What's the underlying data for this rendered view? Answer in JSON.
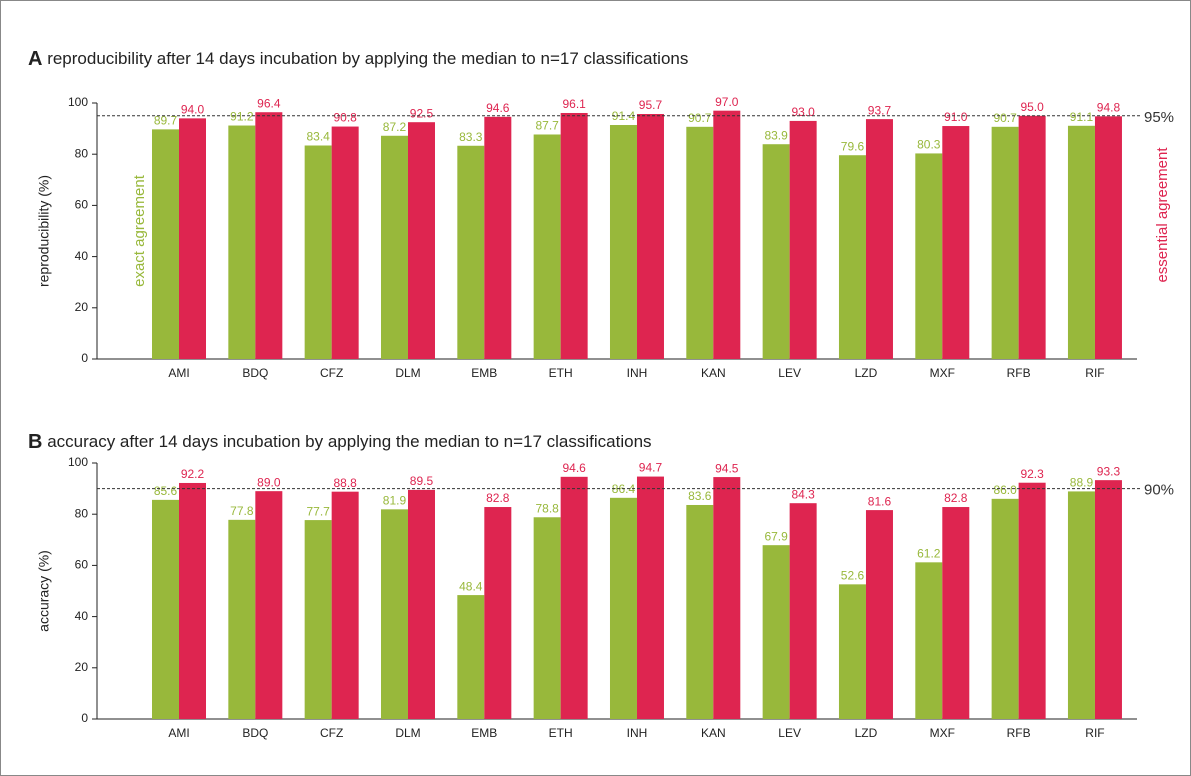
{
  "chart_data": [
    {
      "type": "bar",
      "panel": "A",
      "title": "reproducibility after 14 days incubation by applying the median to n=17 classifications",
      "ylabel": "reproducibility (%)",
      "categories": [
        "AMI",
        "BDQ",
        "CFZ",
        "DLM",
        "EMB",
        "ETH",
        "INH",
        "KAN",
        "LEV",
        "LZD",
        "MXF",
        "RFB",
        "RIF"
      ],
      "series": [
        {
          "name": "exact agreement",
          "color": "#98b83b",
          "values": [
            89.7,
            91.2,
            83.4,
            87.2,
            83.3,
            87.7,
            91.4,
            90.7,
            83.9,
            79.6,
            80.3,
            90.7,
            91.1
          ],
          "value_labels": [
            "89.7",
            "91.2",
            "83.4",
            "87.2",
            "83.3",
            "87.7",
            "91.4",
            "90.7",
            "83.9",
            "79.6",
            "80.3",
            "90.7",
            "91.1"
          ]
        },
        {
          "name": "essential agreement",
          "color": "#de2550",
          "values": [
            94.0,
            96.4,
            90.8,
            92.5,
            94.6,
            96.1,
            95.7,
            97.0,
            93.0,
            93.7,
            91.0,
            95.0,
            94.8
          ],
          "value_labels": [
            "94.0",
            "96.4",
            "90.8",
            "92.5",
            "94.6",
            "96.1",
            "95.7",
            "97.0",
            "93.0",
            "93.7",
            "91.0",
            "95.0",
            "94.8"
          ]
        }
      ],
      "ylim": [
        0,
        100
      ],
      "yticks": [
        0,
        20,
        40,
        60,
        80,
        100
      ],
      "reference_line": {
        "value": 95,
        "label": "95%"
      }
    },
    {
      "type": "bar",
      "panel": "B",
      "title": "accuracy after 14 days incubation by applying the median to n=17 classifications",
      "ylabel": "accuracy (%)",
      "categories": [
        "AMI",
        "BDQ",
        "CFZ",
        "DLM",
        "EMB",
        "ETH",
        "INH",
        "KAN",
        "LEV",
        "LZD",
        "MXF",
        "RFB",
        "RIF"
      ],
      "series": [
        {
          "color": "#98b83b",
          "values": [
            85.6,
            77.8,
            77.7,
            81.9,
            48.4,
            78.8,
            86.4,
            83.6,
            67.9,
            52.6,
            61.2,
            86.0,
            88.9
          ],
          "value_labels": [
            "85.6",
            "77.8",
            "77.7",
            "81.9",
            "48.4",
            "78.8",
            "86.4",
            "83.6",
            "67.9",
            "52.6",
            "61.2",
            "86.0",
            "88.9"
          ]
        },
        {
          "color": "#de2550",
          "values": [
            92.2,
            89.0,
            88.8,
            89.5,
            82.8,
            94.6,
            94.7,
            94.5,
            84.3,
            81.6,
            82.8,
            92.3,
            93.3
          ],
          "value_labels": [
            "92.2",
            "89.0",
            "88.8",
            "89.5",
            "82.8",
            "94.6",
            "94.7",
            "94.5",
            "84.3",
            "81.6",
            "82.8",
            "92.3",
            "93.3"
          ]
        }
      ],
      "ylim": [
        0,
        100
      ],
      "yticks": [
        0,
        20,
        40,
        60,
        80,
        100
      ],
      "reference_line": {
        "value": 90,
        "label": "90%"
      }
    }
  ]
}
